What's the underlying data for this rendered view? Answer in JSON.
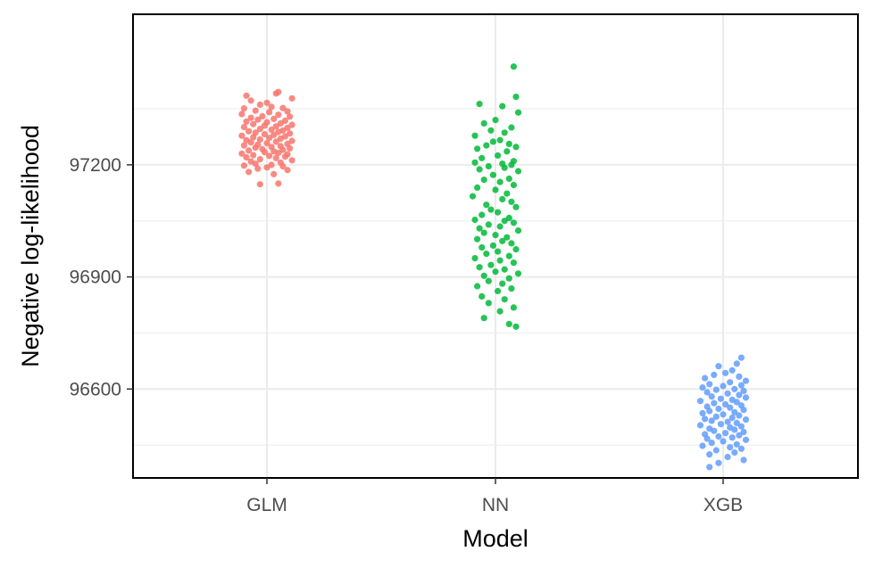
{
  "chart_data": {
    "type": "scatter",
    "subtype": "jitter / strip plot",
    "title": "",
    "xlabel": "Model",
    "ylabel": "Negative log-likelihood",
    "categories": [
      "GLM",
      "NN",
      "XGB"
    ],
    "ylim": [
      96362,
      97603
    ],
    "yticks": [
      96600,
      96900,
      97200
    ],
    "grid": true,
    "legend": "none",
    "colors": {
      "GLM": "#F8766D",
      "NN": "#00BA38",
      "XGB": "#619CFF"
    },
    "series": [
      {
        "category": "GLM",
        "values": [
          97395,
          97372,
          97391,
          97385,
          97378,
          97366,
          97361,
          97355,
          97351,
          97352,
          97345,
          97343,
          97341,
          97336,
          97334,
          97330,
          97329,
          97326,
          97323,
          97321,
          97318,
          97316,
          97314,
          97311,
          97309,
          97307,
          97305,
          97303,
          97301,
          97299,
          97296,
          97294,
          97292,
          97290,
          97288,
          97286,
          97284,
          97282,
          97280,
          97278,
          97276,
          97274,
          97272,
          97270,
          97268,
          97266,
          97264,
          97262,
          97260,
          97258,
          97256,
          97254,
          97252,
          97250,
          97248,
          97246,
          97244,
          97242,
          97240,
          97238,
          97236,
          97234,
          97232,
          97230,
          97228,
          97226,
          97224,
          97222,
          97220,
          97218,
          97215,
          97212,
          97209,
          97206,
          97203,
          97200,
          97198,
          97196,
          97193,
          97190,
          97186,
          97181,
          97175,
          97148,
          97150
        ],
        "jitter": [
          0.05,
          -0.07,
          0.04,
          -0.09,
          0.11,
          0.0,
          -0.03,
          0.02,
          -0.1,
          0.07,
          -0.05,
          0.09,
          0.01,
          -0.11,
          0.05,
          -0.02,
          0.1,
          -0.07,
          0.03,
          -0.04,
          0.08,
          -0.09,
          0.0,
          0.06,
          -0.06,
          0.11,
          -0.01,
          0.04,
          -0.1,
          0.09,
          -0.03,
          0.02,
          0.07,
          -0.08,
          0.05,
          -0.05,
          0.1,
          -0.01,
          0.03,
          -0.11,
          0.08,
          -0.06,
          0.01,
          0.06,
          -0.03,
          -0.09,
          0.11,
          0.04,
          -0.07,
          0.0,
          0.09,
          -0.04,
          -0.1,
          0.06,
          0.02,
          -0.05,
          0.1,
          -0.02,
          0.07,
          -0.08,
          0.03,
          -0.01,
          0.05,
          -0.11,
          0.09,
          -0.06,
          0.01,
          0.08,
          -0.09,
          0.04,
          -0.03,
          0.11,
          -0.07,
          0.06,
          -0.05,
          0.02,
          -0.1,
          0.07,
          0.0,
          -0.04,
          0.09,
          -0.08,
          0.03,
          -0.03,
          0.05
        ]
      },
      {
        "category": "NN",
        "values": [
          97463,
          97382,
          97363,
          97357,
          97340,
          97320,
          97311,
          97300,
          97292,
          97286,
          97278,
          97266,
          97262,
          97256,
          97252,
          97248,
          97243,
          97236,
          97225,
          97218,
          97210,
          97206,
          97203,
          97200,
          97196,
          97192,
          97188,
          97183,
          97173,
          97163,
          97160,
          97154,
          97146,
          97139,
          97133,
          97123,
          97116,
          97108,
          97101,
          97093,
          97087,
          97080,
          97073,
          97066,
          97058,
          97053,
          97050,
          97045,
          97040,
          97035,
          97030,
          97024,
          97018,
          97012,
          97006,
          97001,
          96996,
          96990,
          96984,
          96979,
          96974,
          96968,
          96962,
          96956,
          96950,
          96944,
          96938,
          96932,
          96926,
          96920,
          96914,
          96909,
          96903,
          96896,
          96889,
          96882,
          96875,
          96869,
          96862,
          96848,
          96840,
          96830,
          96818,
          96808,
          96790,
          96774,
          96767
        ],
        "jitter": [
          0.08,
          0.09,
          -0.07,
          0.03,
          0.1,
          0.0,
          -0.05,
          0.07,
          -0.02,
          0.04,
          -0.09,
          0.02,
          -0.01,
          0.06,
          -0.04,
          0.09,
          -0.08,
          0.05,
          0.01,
          -0.06,
          0.08,
          -0.09,
          0.03,
          0.07,
          -0.03,
          0.04,
          -0.07,
          0.1,
          -0.01,
          0.06,
          -0.05,
          0.02,
          0.08,
          -0.08,
          0.0,
          0.05,
          -0.1,
          0.03,
          0.07,
          -0.04,
          0.09,
          -0.02,
          0.01,
          -0.06,
          0.06,
          -0.09,
          0.04,
          0.08,
          -0.03,
          0.02,
          -0.07,
          0.1,
          -0.05,
          0.0,
          0.05,
          -0.08,
          0.03,
          0.07,
          -0.01,
          -0.06,
          0.09,
          0.01,
          -0.04,
          0.06,
          -0.09,
          0.02,
          0.08,
          -0.02,
          -0.07,
          0.04,
          0.0,
          0.1,
          -0.05,
          0.06,
          -0.03,
          0.03,
          -0.08,
          0.07,
          0.01,
          -0.06,
          0.04,
          -0.03,
          0.08,
          0.02,
          -0.05,
          0.06,
          0.09
        ]
      },
      {
        "category": "XGB",
        "values": [
          96684,
          96668,
          96661,
          96650,
          96643,
          96638,
          96633,
          96629,
          96622,
          96618,
          96613,
          96610,
          96608,
          96604,
          96600,
          96598,
          96595,
          96591,
          96588,
          96584,
          96580,
          96577,
          96574,
          96571,
          96568,
          96565,
          96562,
          96559,
          96556,
          96553,
          96550,
          96547,
          96544,
          96541,
          96538,
          96535,
          96532,
          96529,
          96526,
          96523,
          96520,
          96518,
          96515,
          96512,
          96509,
          96506,
          96503,
          96500,
          96497,
          96494,
          96491,
          96488,
          96485,
          96482,
          96479,
          96476,
          96473,
          96470,
          96467,
          96464,
          96460,
          96456,
          96452,
          96448,
          96444,
          96440,
          96436,
          96430,
          96425,
          96418,
          96410,
          96402,
          96391
        ],
        "jitter": [
          0.08,
          0.06,
          -0.02,
          0.04,
          0.01,
          -0.04,
          0.07,
          -0.08,
          0.1,
          0.03,
          -0.06,
          0.08,
          0.0,
          -0.09,
          0.05,
          -0.03,
          0.09,
          -0.07,
          0.02,
          0.07,
          -0.05,
          0.1,
          -0.01,
          0.04,
          -0.1,
          0.06,
          -0.04,
          0.01,
          0.08,
          -0.07,
          0.03,
          -0.02,
          0.09,
          -0.06,
          0.05,
          -0.09,
          0.0,
          0.07,
          -0.03,
          0.04,
          -0.08,
          0.1,
          -0.05,
          0.02,
          0.06,
          -0.01,
          -0.1,
          0.08,
          0.03,
          -0.06,
          0.05,
          -0.04,
          0.09,
          0.01,
          -0.08,
          0.07,
          -0.02,
          0.04,
          -0.07,
          0.1,
          0.0,
          -0.05,
          0.06,
          -0.09,
          0.03,
          0.08,
          -0.03,
          0.05,
          -0.06,
          0.02,
          0.09,
          -0.02,
          -0.06
        ]
      }
    ]
  }
}
